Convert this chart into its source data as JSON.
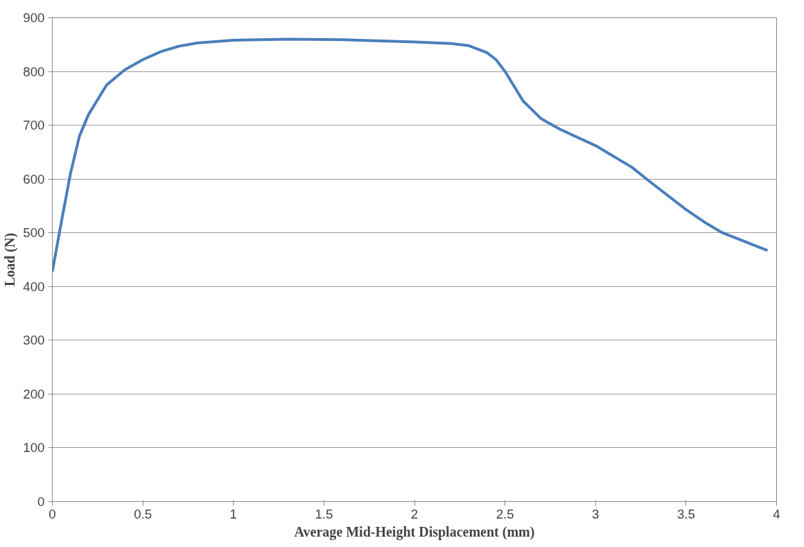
{
  "chart_data": {
    "type": "line",
    "xlabel": "Average Mid-Height Displacement (mm)",
    "ylabel": "Load (N)",
    "x": [
      0,
      0.05,
      0.1,
      0.15,
      0.2,
      0.3,
      0.4,
      0.5,
      0.6,
      0.7,
      0.8,
      1.0,
      1.3,
      1.6,
      2.0,
      2.2,
      2.3,
      2.4,
      2.45,
      2.5,
      2.6,
      2.7,
      2.8,
      3.0,
      3.2,
      3.3,
      3.5,
      3.6,
      3.7,
      3.8,
      3.95
    ],
    "series": [
      {
        "color": "#4a7ebb",
        "values": [
          428,
          520,
          610,
          680,
          720,
          775,
          803,
          822,
          837,
          847,
          853,
          858,
          860,
          859,
          855,
          852,
          848,
          835,
          822,
          800,
          745,
          712,
          693,
          662,
          622,
          595,
          543,
          520,
          500,
          487,
          467
        ]
      }
    ],
    "xlim": [
      0,
      4
    ],
    "xticks": [
      0,
      0.5,
      1,
      1.5,
      2,
      2.5,
      3,
      3.5,
      4
    ],
    "ylim": [
      0,
      900
    ],
    "yticks": [
      0,
      100,
      200,
      300,
      400,
      500,
      600,
      700,
      800,
      900
    ],
    "grid": "y",
    "marker": "none",
    "line_style": "solid"
  }
}
